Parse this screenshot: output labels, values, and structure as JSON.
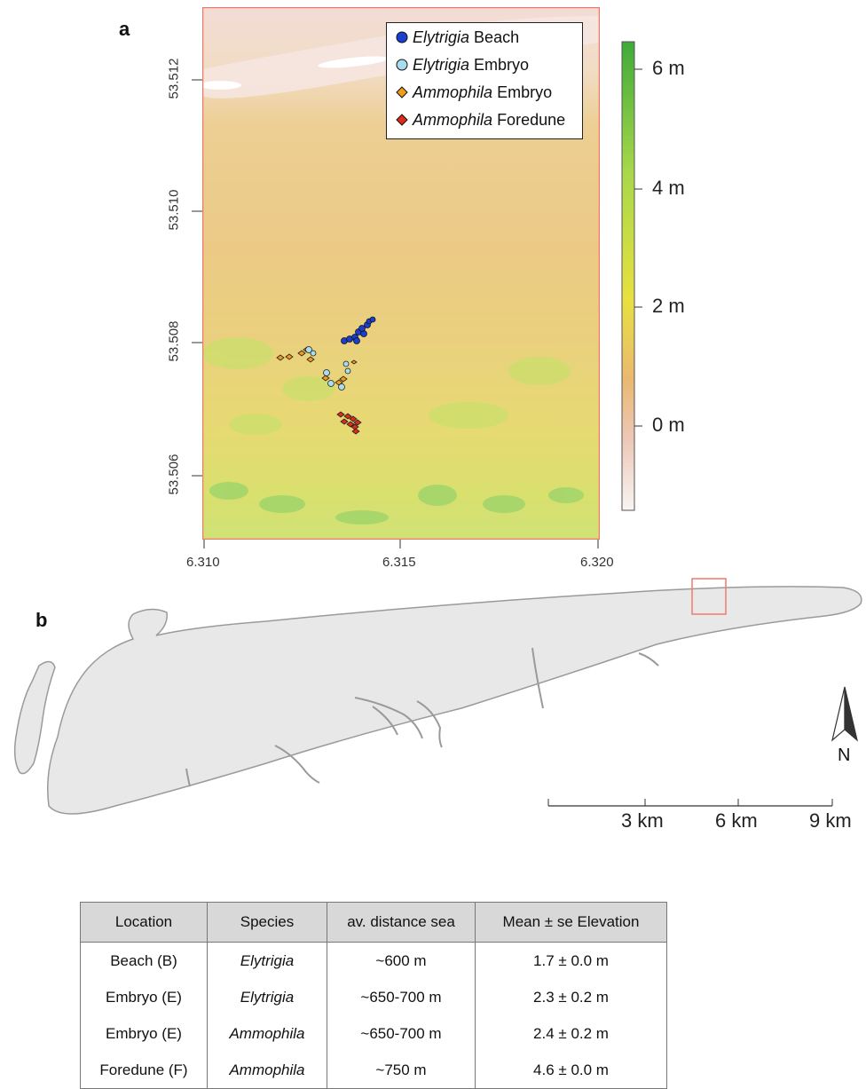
{
  "panel_a": {
    "label": "a",
    "y_ticks": [
      "53.512",
      "53.510",
      "53.508",
      "53.506"
    ],
    "x_ticks": [
      "6.310",
      "6.315",
      "6.320"
    ],
    "colorbar_ticks": [
      "6 m",
      "4 m",
      "2 m",
      "0 m"
    ],
    "legend": [
      {
        "genus": "Elytrigia",
        "rest": " Beach",
        "color": "#1a3fd0",
        "marker": "circle"
      },
      {
        "genus": "Elytrigia",
        "rest": " Embryo",
        "color": "#a9dcef",
        "marker": "circle"
      },
      {
        "genus": "Ammophila",
        "rest": " Embryo",
        "color": "#f29c1c",
        "marker": "diamond"
      },
      {
        "genus": "Ammophila",
        "rest": " Foredune",
        "color": "#e02a1a",
        "marker": "diamond"
      }
    ]
  },
  "panel_b": {
    "label": "b",
    "north_label": "N",
    "scale_labels": [
      "3 km",
      "6 km",
      "9 km"
    ]
  },
  "table": {
    "headers": [
      "Location",
      "Species",
      "av. distance sea",
      "Mean ± se Elevation"
    ],
    "rows": [
      [
        "Beach (B)",
        "Elytrigia",
        "~600 m",
        "1.7 ± 0.0 m"
      ],
      [
        "Embryo (E)",
        "Elytrigia",
        "~650-700 m",
        "2.3 ± 0.2 m"
      ],
      [
        "Embryo (E)",
        "Ammophila",
        "~650-700 m",
        "2.4 ± 0.2 m"
      ],
      [
        "Foredune (F)",
        "Ammophila",
        "~750 m",
        "4.6 ± 0.0 m"
      ]
    ]
  }
}
